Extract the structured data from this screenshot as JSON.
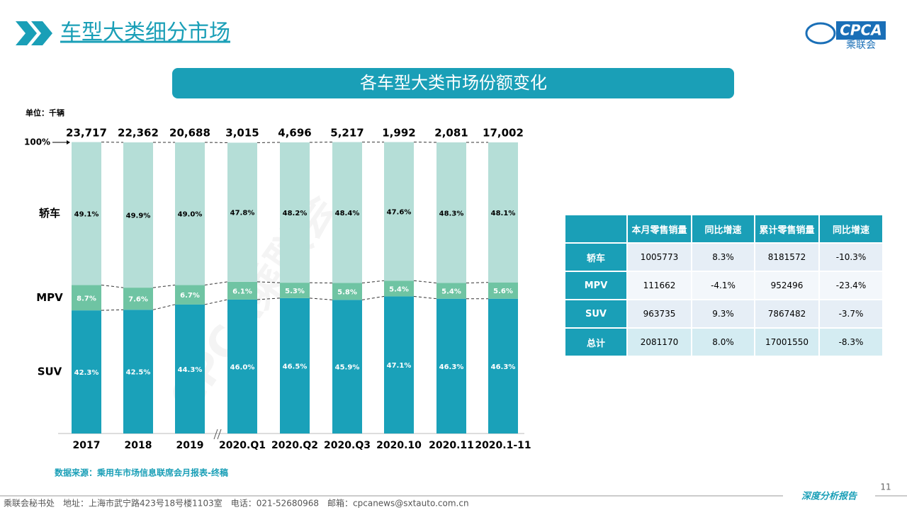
{
  "header": {
    "title": "车型大类细分市场",
    "logo_text": "CPCA",
    "logo_sub": "乘联会"
  },
  "chart_data": {
    "type": "bar",
    "stacked": true,
    "title": "各车型大类市场份额变化",
    "unit_label": "单位：千辆",
    "categories": [
      "2017",
      "2018",
      "2019",
      "2020.Q1",
      "2020.Q2",
      "2020.Q3",
      "2020.10",
      "2020.11",
      "2020.1-11"
    ],
    "totals": {
      "values": [
        23717,
        22362,
        20688,
        3015,
        4696,
        5217,
        1992,
        2081,
        17002
      ],
      "value_labels": [
        "23,717",
        "22,362",
        "20,688",
        "3,015",
        "4,696",
        "5,217",
        "1,992",
        "2,081",
        "17,002"
      ]
    },
    "series": [
      {
        "name": "SUV",
        "color": "#1aa1b9",
        "label_color": "#ffffff",
        "values": [
          42.3,
          42.5,
          44.3,
          46.0,
          46.5,
          45.9,
          47.1,
          46.3,
          46.3
        ],
        "value_labels": [
          "42.3%",
          "42.5%",
          "44.3%",
          "46.0%",
          "46.5%",
          "45.9%",
          "47.1%",
          "46.3%",
          "46.3%"
        ]
      },
      {
        "name": "MPV",
        "color": "#6fc4a3",
        "label_color": "#ffffff",
        "values": [
          8.7,
          7.6,
          6.7,
          6.1,
          5.3,
          5.8,
          5.4,
          5.4,
          5.6
        ],
        "value_labels": [
          "8.7%",
          "7.6%",
          "6.7%",
          "6.1%",
          "5.3%",
          "5.8%",
          "5.4%",
          "5.4%",
          "5.6%"
        ]
      },
      {
        "name": "轿车",
        "color": "#b5ded7",
        "label_color": "#000000",
        "values": [
          49.1,
          49.9,
          49.0,
          47.8,
          48.2,
          48.4,
          47.6,
          48.3,
          48.1
        ],
        "value_labels": [
          "49.1%",
          "49.9%",
          "49.0%",
          "47.8%",
          "48.2%",
          "48.4%",
          "47.6%",
          "48.3%",
          "48.1%"
        ]
      }
    ],
    "ylim": [
      0,
      100
    ],
    "yticks": [
      {
        "value": 100,
        "label": "100%"
      }
    ],
    "source": "数据来源：乘用车市场信息联席会月报表-终稿"
  },
  "table": {
    "header": [
      "本月零售销量",
      "同比增速",
      "累计零售销量",
      "同比增速"
    ],
    "rows": [
      [
        "轿车",
        "1005773",
        "8.3%",
        "8181572",
        "-10.3%"
      ],
      [
        "MPV",
        "111662",
        "-4.1%",
        "952496",
        "-23.4%"
      ],
      [
        "SUV",
        "963735",
        "9.3%",
        "7867482",
        "-3.7%"
      ],
      [
        "总计",
        "2081170",
        "8.0%",
        "17001550",
        "-8.3%"
      ]
    ]
  },
  "footer": {
    "contact": "乘联会秘书处　地址：上海市武宁路423号18号楼1103室　电话：021-52680968　邮箱：cpcanews@sxtauto.com.cn",
    "page": "11",
    "report": "深度分析报告"
  }
}
